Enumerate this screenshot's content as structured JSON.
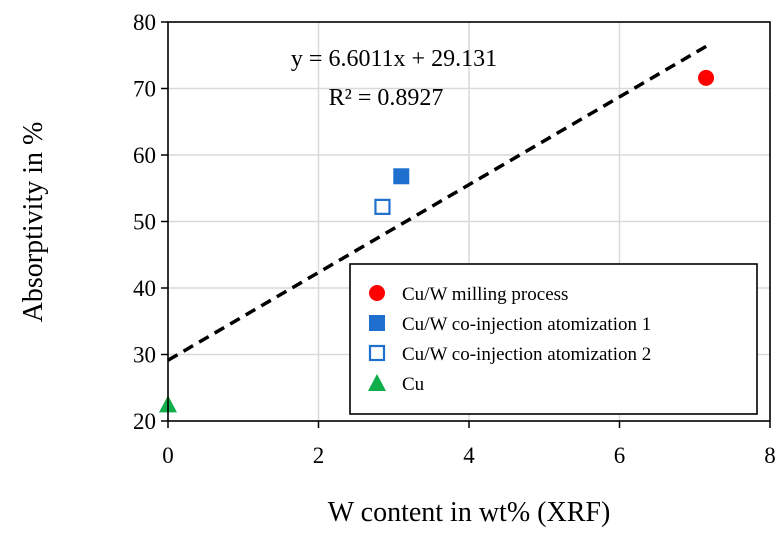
{
  "chart_data": {
    "type": "scatter",
    "xlabel": "W content in wt% (XRF)",
    "ylabel": "Absorptivity in %",
    "xlim": [
      0,
      8
    ],
    "ylim": [
      20,
      80
    ],
    "x_ticks": [
      0,
      2,
      4,
      6,
      8
    ],
    "y_ticks": [
      20,
      30,
      40,
      50,
      60,
      70,
      80
    ],
    "grid": true,
    "legend_position": "bottom-right",
    "series": [
      {
        "name": "Cu/W milling process",
        "marker": "circle-filled",
        "color": "#ff0000",
        "points": [
          {
            "x": 7.15,
            "y": 71.6
          }
        ]
      },
      {
        "name": "Cu/W co-injection atomization 1",
        "marker": "square-filled",
        "color": "#1f6fce",
        "points": [
          {
            "x": 3.1,
            "y": 56.8
          }
        ]
      },
      {
        "name": "Cu/W co-injection atomization 2",
        "marker": "square-open",
        "color": "#1f6fce",
        "points": [
          {
            "x": 2.85,
            "y": 52.2
          }
        ]
      },
      {
        "name": "Cu",
        "marker": "triangle-filled",
        "color": "#0fae4b",
        "points": [
          {
            "x": 0,
            "y": 22.5
          }
        ]
      }
    ],
    "trendline": {
      "slope": 6.6011,
      "intercept": 29.131,
      "x_range": [
        0,
        7.2
      ],
      "style": "dashed",
      "color": "#000000",
      "equation": "y = 6.6011x + 29.131",
      "r_squared": "R² = 0.8927"
    }
  }
}
